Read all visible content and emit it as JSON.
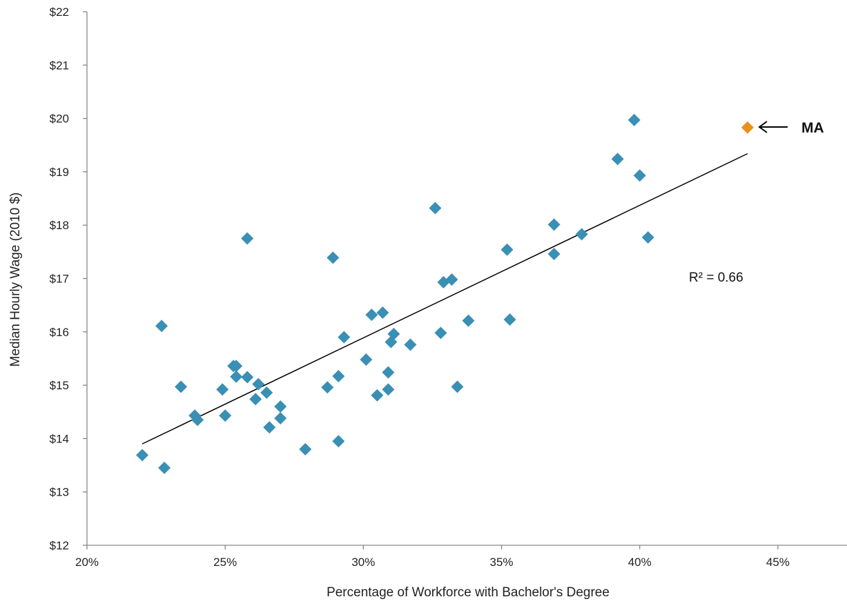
{
  "chart_data": {
    "type": "scatter",
    "title": "",
    "xlabel": "Percentage of Workforce with Bachelor's Degree",
    "ylabel": "Median Hourly Wage (2010 $)",
    "xlim": [
      0.2,
      0.475
    ],
    "ylim": [
      12,
      22
    ],
    "x_ticks": [
      0.2,
      0.25,
      0.3,
      0.35,
      0.4,
      0.45
    ],
    "x_tick_labels": [
      "20%",
      "25%",
      "30%",
      "35%",
      "40%",
      "45%"
    ],
    "y_ticks": [
      12,
      13,
      14,
      15,
      16,
      17,
      18,
      19,
      20,
      21,
      22
    ],
    "y_tick_labels": [
      "$12",
      "$13",
      "$14",
      "$15",
      "$16",
      "$17",
      "$18",
      "$19",
      "$20",
      "$21",
      "$22"
    ],
    "grid": false,
    "legend": "none",
    "colors": {
      "states": "#3a8fb5",
      "highlight": "#e8901a",
      "trendline": "#000000"
    },
    "series": [
      {
        "points": [
          [
            0.22,
            13.69
          ],
          [
            0.227,
            16.11
          ],
          [
            0.228,
            13.45
          ],
          [
            0.234,
            14.97
          ],
          [
            0.239,
            14.43
          ],
          [
            0.24,
            14.35
          ],
          [
            0.249,
            14.92
          ],
          [
            0.25,
            14.43
          ],
          [
            0.253,
            15.36
          ],
          [
            0.254,
            15.16
          ],
          [
            0.254,
            15.36
          ],
          [
            0.258,
            15.15
          ],
          [
            0.258,
            17.75
          ],
          [
            0.261,
            14.74
          ],
          [
            0.262,
            15.02
          ],
          [
            0.265,
            14.86
          ],
          [
            0.266,
            14.21
          ],
          [
            0.27,
            14.38
          ],
          [
            0.27,
            14.6
          ],
          [
            0.279,
            13.8
          ],
          [
            0.287,
            14.96
          ],
          [
            0.289,
            17.39
          ],
          [
            0.291,
            13.95
          ],
          [
            0.291,
            15.17
          ],
          [
            0.293,
            15.9
          ],
          [
            0.301,
            15.48
          ],
          [
            0.303,
            16.32
          ],
          [
            0.305,
            14.81
          ],
          [
            0.307,
            16.36
          ],
          [
            0.309,
            14.92
          ],
          [
            0.309,
            15.24
          ],
          [
            0.31,
            15.81
          ],
          [
            0.311,
            15.96
          ],
          [
            0.317,
            15.76
          ],
          [
            0.326,
            18.32
          ],
          [
            0.328,
            15.98
          ],
          [
            0.329,
            16.93
          ],
          [
            0.332,
            16.98
          ],
          [
            0.334,
            14.97
          ],
          [
            0.338,
            16.21
          ],
          [
            0.352,
            17.54
          ],
          [
            0.353,
            16.23
          ],
          [
            0.369,
            18.01
          ],
          [
            0.369,
            17.46
          ],
          [
            0.379,
            17.83
          ],
          [
            0.392,
            19.24
          ],
          [
            0.398,
            19.97
          ],
          [
            0.4,
            18.93
          ],
          [
            0.403,
            17.77
          ]
        ]
      },
      {
        "name": "MA",
        "points": [
          [
            0.439,
            19.83
          ]
        ]
      }
    ],
    "trendline": {
      "x": [
        0.22,
        0.439
      ],
      "y": [
        13.9,
        19.34
      ]
    },
    "annotations": {
      "r_squared": "R² = 0.66",
      "highlight_label": "MA",
      "highlight_arrow": "←"
    }
  }
}
